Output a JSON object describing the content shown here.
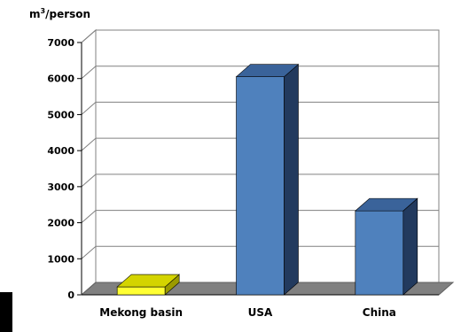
{
  "chart_data": {
    "type": "bar",
    "ylabel_base": "m",
    "ylabel_sup": "3",
    "ylabel_rest": "/person",
    "categories": [
      "Mekong basin",
      "USA",
      "China"
    ],
    "values": [
      220,
      6050,
      2330
    ],
    "colors": {
      "Mekong basin": {
        "front": "#ffff33",
        "top": "#d4d400",
        "side": "#9a9a00"
      },
      "USA": {
        "front": "#4f81bd",
        "top": "#3a639a",
        "side": "#223a5e"
      },
      "China": {
        "front": "#4f81bd",
        "top": "#3a639a",
        "side": "#223a5e"
      }
    },
    "ylim": [
      0,
      7000
    ],
    "yticks": [
      0,
      1000,
      2000,
      3000,
      4000,
      5000,
      6000,
      7000
    ],
    "grid": true,
    "floor_color": "#808080"
  }
}
